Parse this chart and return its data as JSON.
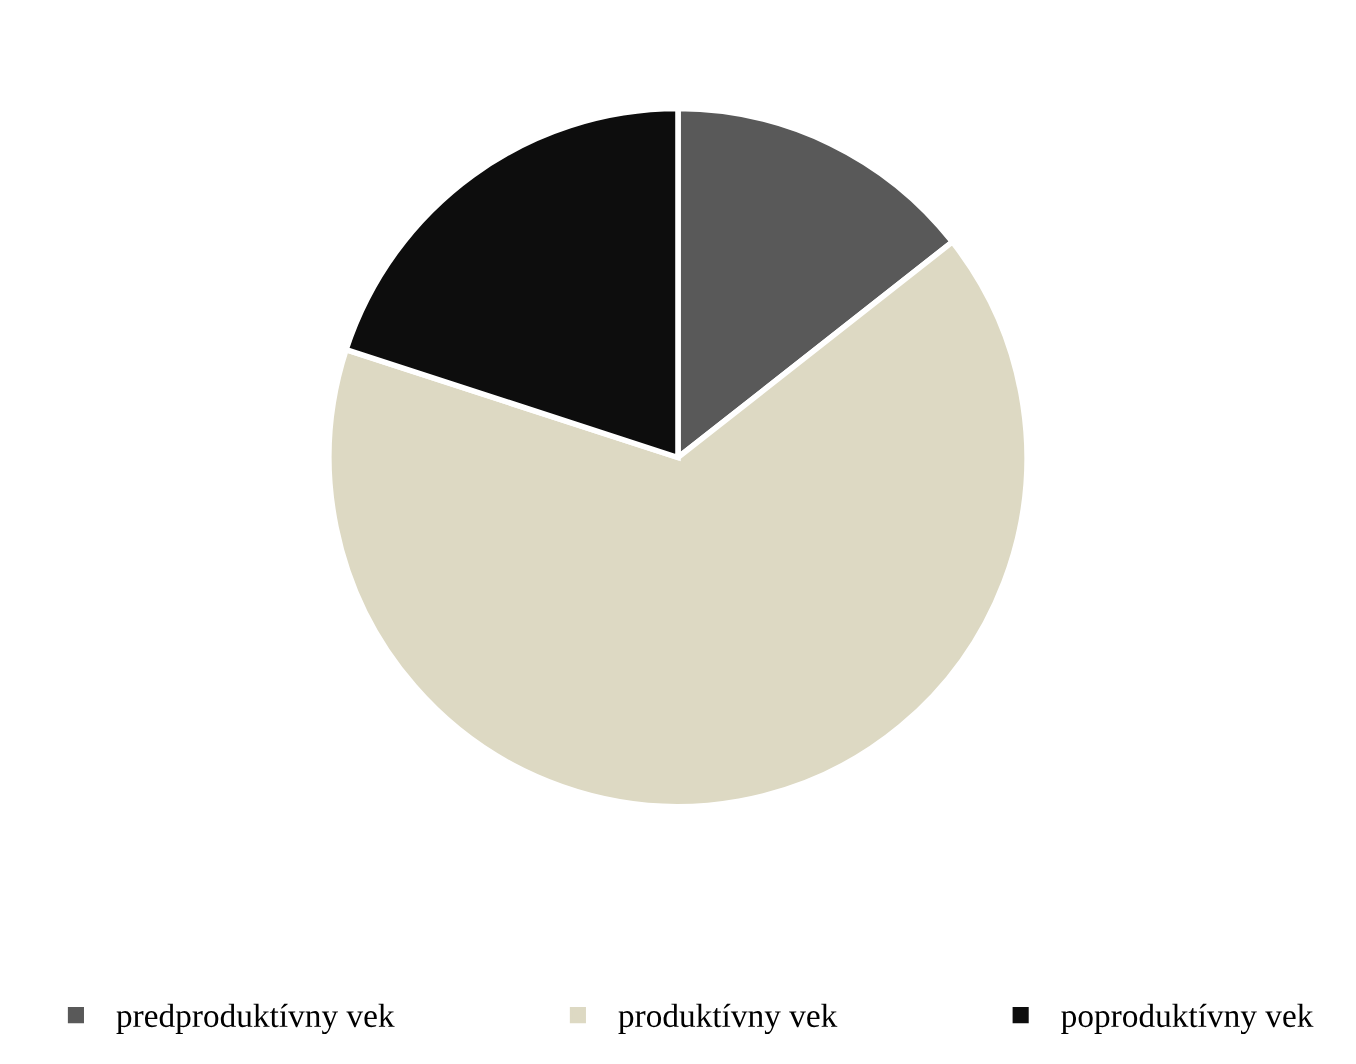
{
  "chart_data": {
    "type": "pie",
    "categories": [
      "predproduktívny vek",
      "produktívny vek",
      "poproduktívny vek"
    ],
    "values": [
      14.4,
      65.6,
      20.0
    ],
    "colors": [
      "#595959",
      "#ddd9c3",
      "#0d0d0d"
    ],
    "legend": "bottom"
  }
}
